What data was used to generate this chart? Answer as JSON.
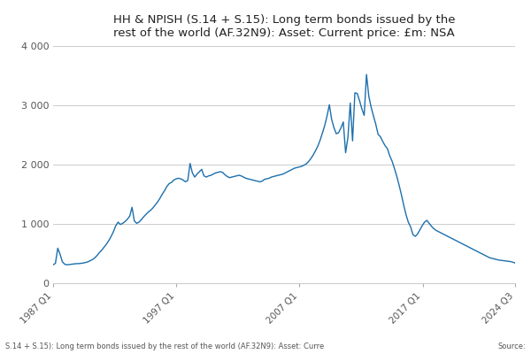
{
  "title": "HH & NPISH (S.14 + S.15): Long term bonds issued by the\nrest of the world (AF.32N9): Asset: Current price: £m: NSA",
  "line_color": "#1c6fad",
  "background_color": "#ffffff",
  "grid_color": "#cccccc",
  "ylim": [
    0,
    4000
  ],
  "yticks": [
    0,
    1000,
    2000,
    3000,
    4000
  ],
  "ytick_labels": [
    "0",
    "1 000",
    "2 000",
    "3 000",
    "4 000"
  ],
  "xlabel_ticks": [
    "1987 Q1",
    "1997 Q1",
    "2007 Q1",
    "2017 Q1",
    "2024 Q3"
  ],
  "footer_text": "S.14 + S.15): Long term bonds issued by the rest of the world (AF.32N9): Asset: Curre",
  "source_text": "Source:",
  "data": [
    310,
    335,
    590,
    490,
    360,
    320,
    310,
    315,
    320,
    325,
    330,
    330,
    335,
    340,
    350,
    360,
    380,
    400,
    430,
    470,
    520,
    560,
    610,
    660,
    720,
    790,
    870,
    970,
    1030,
    990,
    1010,
    1040,
    1080,
    1130,
    1280,
    1050,
    1010,
    1030,
    1070,
    1120,
    1160,
    1200,
    1230,
    1270,
    1320,
    1370,
    1430,
    1500,
    1560,
    1630,
    1680,
    1700,
    1740,
    1760,
    1770,
    1760,
    1740,
    1710,
    1730,
    2020,
    1860,
    1790,
    1840,
    1880,
    1920,
    1810,
    1790,
    1810,
    1820,
    1840,
    1860,
    1870,
    1880,
    1870,
    1830,
    1800,
    1780,
    1790,
    1800,
    1810,
    1820,
    1810,
    1790,
    1770,
    1760,
    1750,
    1740,
    1730,
    1720,
    1710,
    1720,
    1750,
    1760,
    1770,
    1790,
    1800,
    1810,
    1820,
    1830,
    1840,
    1860,
    1880,
    1900,
    1920,
    1940,
    1950,
    1960,
    1970,
    1990,
    2010,
    2050,
    2100,
    2160,
    2230,
    2310,
    2410,
    2530,
    2660,
    2820,
    3010,
    2760,
    2620,
    2520,
    2540,
    2620,
    2720,
    2200,
    2460,
    3040,
    2400,
    3210,
    3200,
    3080,
    2940,
    2830,
    3520,
    3150,
    2970,
    2820,
    2680,
    2510,
    2470,
    2390,
    2320,
    2270,
    2150,
    2060,
    1940,
    1810,
    1660,
    1500,
    1320,
    1160,
    1030,
    950,
    820,
    790,
    830,
    900,
    970,
    1030,
    1060,
    1010,
    960,
    920,
    890,
    870,
    850,
    830,
    810,
    790,
    770,
    750,
    730,
    710,
    690,
    670,
    650,
    630,
    610,
    590,
    570,
    550,
    530,
    510,
    490,
    470,
    450,
    430,
    420,
    410,
    400,
    390,
    385,
    380,
    375,
    370,
    365,
    355,
    340
  ]
}
